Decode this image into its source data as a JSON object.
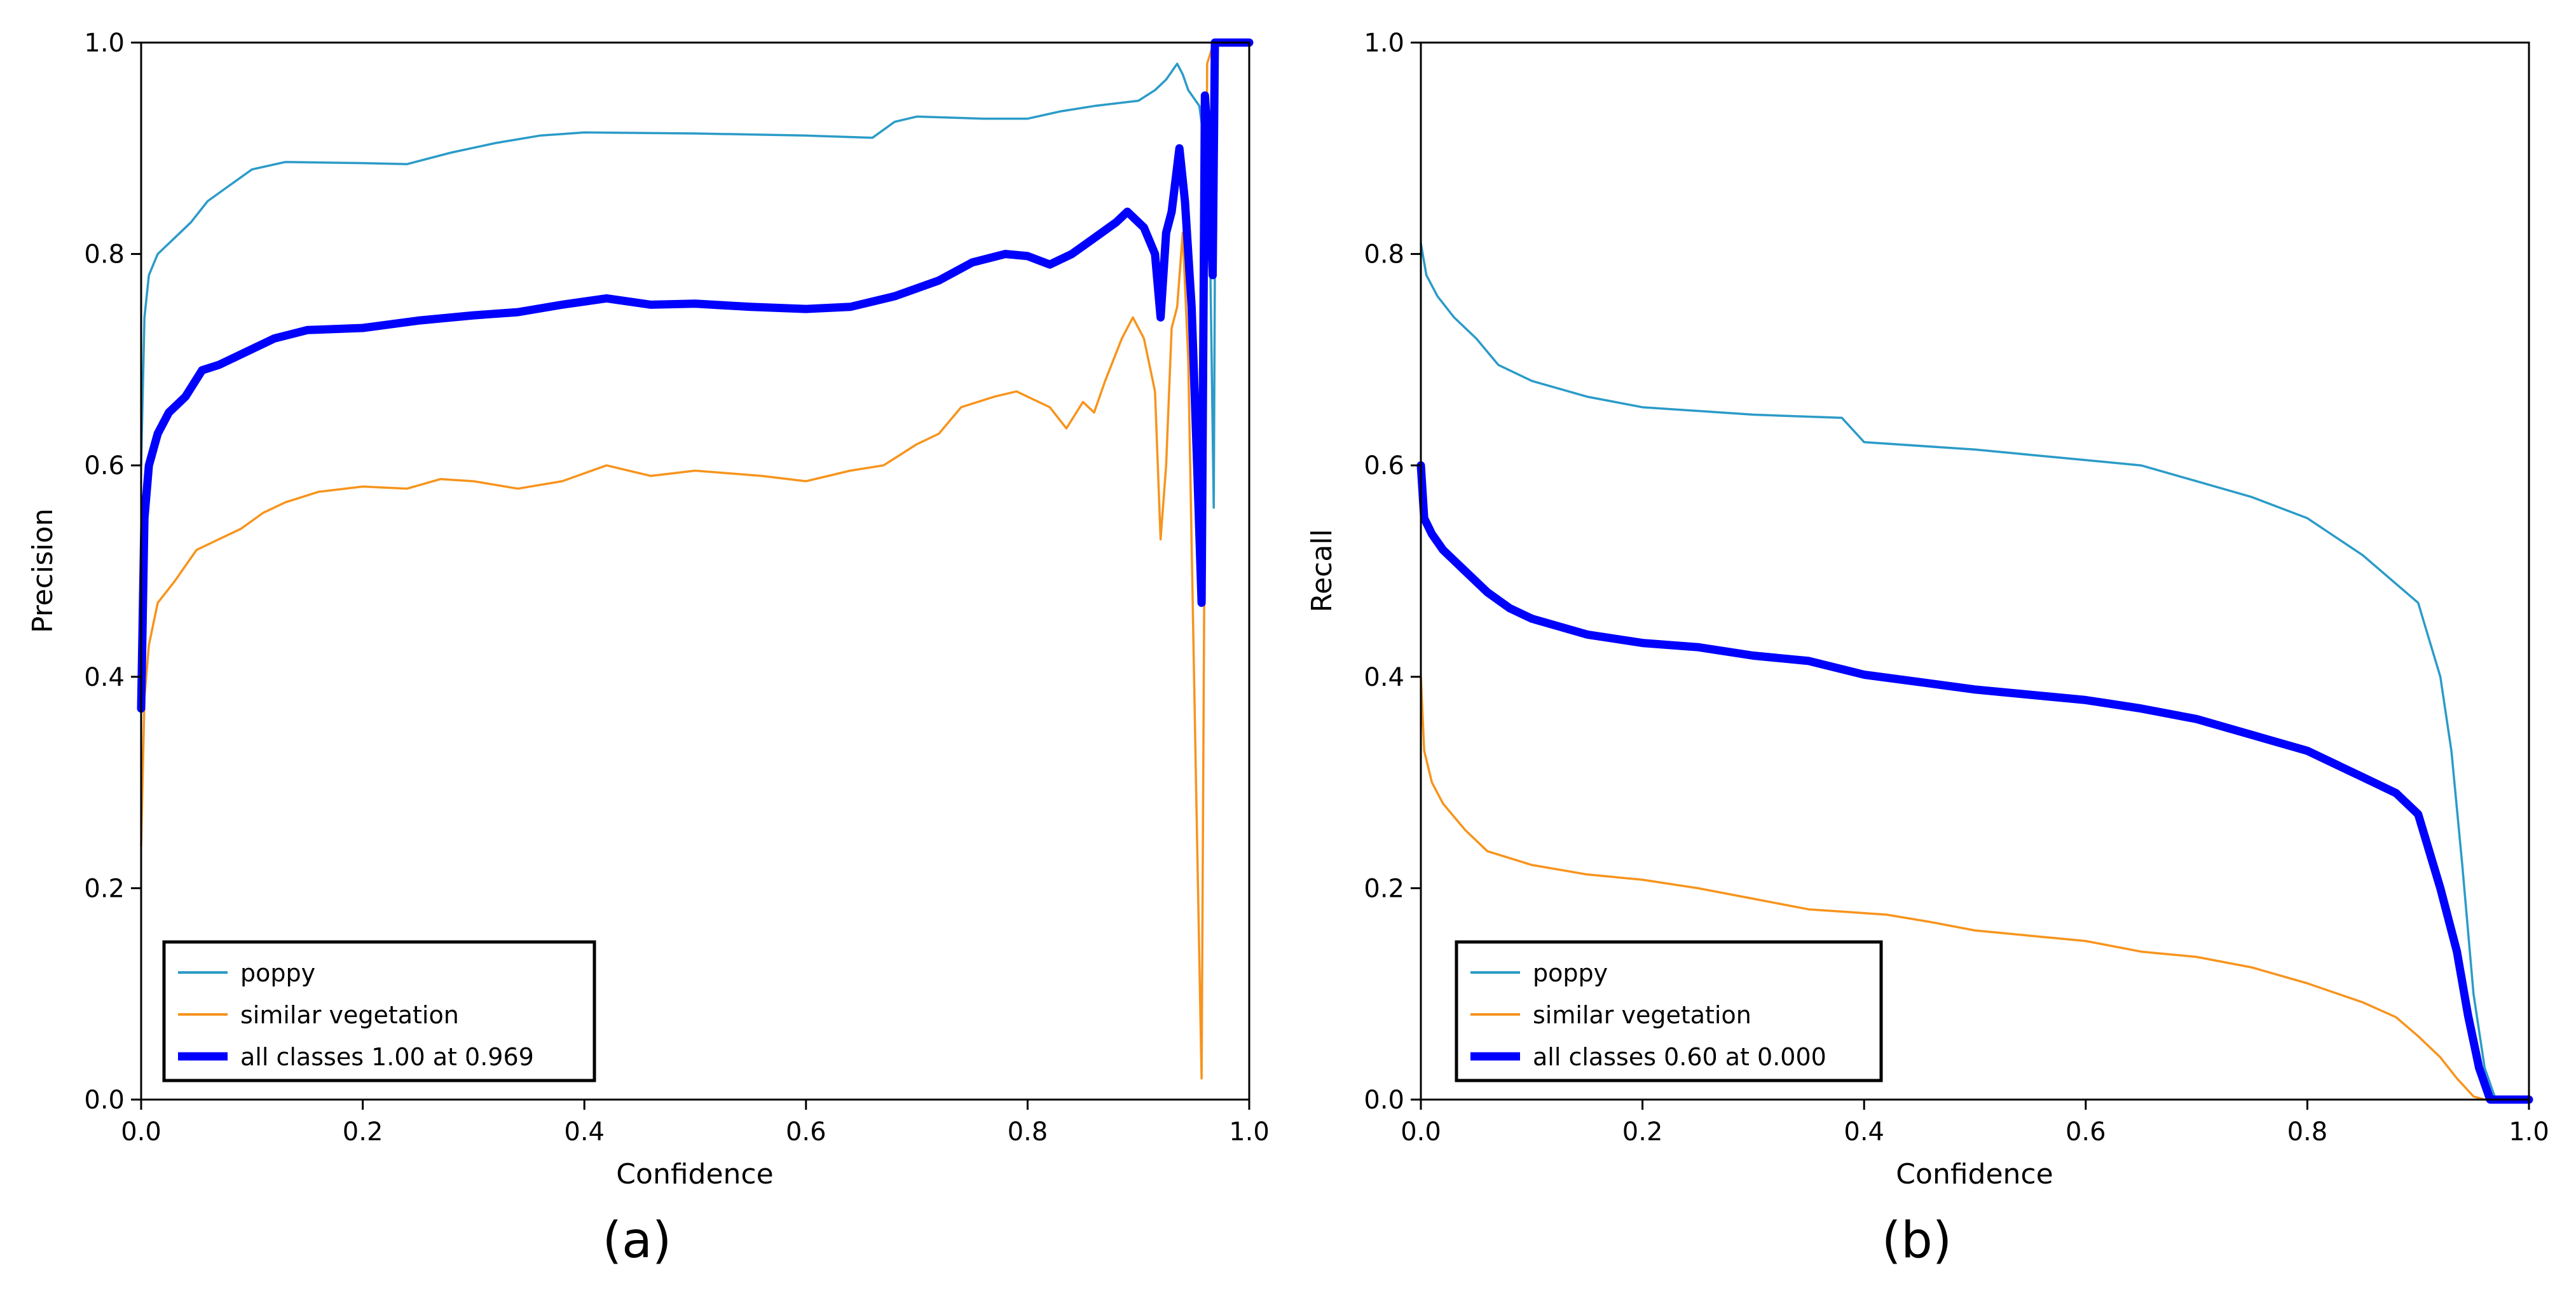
{
  "colors": {
    "poppy": "#2b9bc8",
    "similar_vegetation": "#f7941d",
    "all_classes": "#0000ff"
  },
  "chart_data": [
    {
      "type": "line",
      "panel_label": "(a)",
      "title": "",
      "xlabel": "Confidence",
      "ylabel": "Precision",
      "xlim": [
        0,
        1
      ],
      "ylim": [
        0,
        1
      ],
      "xticks": [
        "0.0",
        "0.2",
        "0.4",
        "0.6",
        "0.8",
        "1.0"
      ],
      "yticks": [
        "0.0",
        "0.2",
        "0.4",
        "0.6",
        "0.8",
        "1.0"
      ],
      "grid": false,
      "legend_position": "bottom-left",
      "series": [
        {
          "name": "poppy",
          "color": "#2b9bc8",
          "width": "thin",
          "points": [
            [
              0.0,
              0.6
            ],
            [
              0.003,
              0.74
            ],
            [
              0.007,
              0.78
            ],
            [
              0.015,
              0.8
            ],
            [
              0.03,
              0.815
            ],
            [
              0.045,
              0.83
            ],
            [
              0.06,
              0.85
            ],
            [
              0.08,
              0.865
            ],
            [
              0.1,
              0.88
            ],
            [
              0.13,
              0.887
            ],
            [
              0.2,
              0.886
            ],
            [
              0.24,
              0.885
            ],
            [
              0.28,
              0.896
            ],
            [
              0.32,
              0.905
            ],
            [
              0.36,
              0.912
            ],
            [
              0.4,
              0.915
            ],
            [
              0.5,
              0.914
            ],
            [
              0.6,
              0.912
            ],
            [
              0.66,
              0.91
            ],
            [
              0.68,
              0.925
            ],
            [
              0.7,
              0.93
            ],
            [
              0.76,
              0.928
            ],
            [
              0.8,
              0.928
            ],
            [
              0.83,
              0.935
            ],
            [
              0.86,
              0.94
            ],
            [
              0.9,
              0.945
            ],
            [
              0.915,
              0.955
            ],
            [
              0.925,
              0.965
            ],
            [
              0.935,
              0.98
            ],
            [
              0.94,
              0.97
            ],
            [
              0.945,
              0.955
            ],
            [
              0.955,
              0.94
            ],
            [
              0.96,
              0.9
            ],
            [
              0.965,
              0.78
            ],
            [
              0.968,
              0.56
            ],
            [
              0.97,
              1.0
            ],
            [
              1.0,
              1.0
            ]
          ]
        },
        {
          "name": "similar vegetation",
          "color": "#f7941d",
          "width": "thin",
          "points": [
            [
              0.0,
              0.24
            ],
            [
              0.003,
              0.38
            ],
            [
              0.007,
              0.43
            ],
            [
              0.015,
              0.47
            ],
            [
              0.03,
              0.49
            ],
            [
              0.05,
              0.52
            ],
            [
              0.07,
              0.53
            ],
            [
              0.09,
              0.54
            ],
            [
              0.11,
              0.555
            ],
            [
              0.13,
              0.565
            ],
            [
              0.16,
              0.575
            ],
            [
              0.2,
              0.58
            ],
            [
              0.24,
              0.578
            ],
            [
              0.27,
              0.587
            ],
            [
              0.3,
              0.585
            ],
            [
              0.34,
              0.578
            ],
            [
              0.38,
              0.585
            ],
            [
              0.42,
              0.6
            ],
            [
              0.46,
              0.59
            ],
            [
              0.5,
              0.595
            ],
            [
              0.56,
              0.59
            ],
            [
              0.6,
              0.585
            ],
            [
              0.64,
              0.595
            ],
            [
              0.67,
              0.6
            ],
            [
              0.7,
              0.62
            ],
            [
              0.72,
              0.63
            ],
            [
              0.74,
              0.655
            ],
            [
              0.77,
              0.665
            ],
            [
              0.79,
              0.67
            ],
            [
              0.82,
              0.655
            ],
            [
              0.835,
              0.635
            ],
            [
              0.85,
              0.66
            ],
            [
              0.86,
              0.65
            ],
            [
              0.87,
              0.68
            ],
            [
              0.885,
              0.72
            ],
            [
              0.895,
              0.74
            ],
            [
              0.905,
              0.72
            ],
            [
              0.915,
              0.67
            ],
            [
              0.92,
              0.53
            ],
            [
              0.925,
              0.6
            ],
            [
              0.93,
              0.73
            ],
            [
              0.935,
              0.75
            ],
            [
              0.94,
              0.82
            ],
            [
              0.945,
              0.7
            ],
            [
              0.952,
              0.3
            ],
            [
              0.957,
              0.02
            ],
            [
              0.962,
              0.98
            ],
            [
              0.968,
              1.0
            ],
            [
              1.0,
              1.0
            ]
          ]
        },
        {
          "name": "all classes 1.00 at 0.969",
          "color": "#0000ff",
          "width": "thick",
          "points": [
            [
              0.0,
              0.37
            ],
            [
              0.003,
              0.55
            ],
            [
              0.007,
              0.6
            ],
            [
              0.015,
              0.63
            ],
            [
              0.025,
              0.65
            ],
            [
              0.04,
              0.665
            ],
            [
              0.055,
              0.69
            ],
            [
              0.07,
              0.695
            ],
            [
              0.09,
              0.705
            ],
            [
              0.12,
              0.72
            ],
            [
              0.15,
              0.728
            ],
            [
              0.2,
              0.73
            ],
            [
              0.25,
              0.737
            ],
            [
              0.3,
              0.742
            ],
            [
              0.34,
              0.745
            ],
            [
              0.38,
              0.752
            ],
            [
              0.42,
              0.758
            ],
            [
              0.46,
              0.752
            ],
            [
              0.5,
              0.753
            ],
            [
              0.55,
              0.75
            ],
            [
              0.6,
              0.748
            ],
            [
              0.64,
              0.75
            ],
            [
              0.68,
              0.76
            ],
            [
              0.72,
              0.775
            ],
            [
              0.75,
              0.792
            ],
            [
              0.78,
              0.8
            ],
            [
              0.8,
              0.798
            ],
            [
              0.82,
              0.79
            ],
            [
              0.84,
              0.8
            ],
            [
              0.86,
              0.815
            ],
            [
              0.88,
              0.83
            ],
            [
              0.89,
              0.84
            ],
            [
              0.905,
              0.825
            ],
            [
              0.915,
              0.8
            ],
            [
              0.92,
              0.74
            ],
            [
              0.925,
              0.82
            ],
            [
              0.93,
              0.84
            ],
            [
              0.937,
              0.9
            ],
            [
              0.942,
              0.85
            ],
            [
              0.948,
              0.75
            ],
            [
              0.953,
              0.6
            ],
            [
              0.957,
              0.47
            ],
            [
              0.96,
              0.95
            ],
            [
              0.963,
              0.9
            ],
            [
              0.967,
              0.78
            ],
            [
              0.969,
              1.0
            ],
            [
              1.0,
              1.0
            ]
          ]
        }
      ]
    },
    {
      "type": "line",
      "panel_label": "(b)",
      "title": "",
      "xlabel": "Confidence",
      "ylabel": "Recall",
      "xlim": [
        0,
        1
      ],
      "ylim": [
        0,
        1
      ],
      "xticks": [
        "0.0",
        "0.2",
        "0.4",
        "0.6",
        "0.8",
        "1.0"
      ],
      "yticks": [
        "0.0",
        "0.2",
        "0.4",
        "0.6",
        "0.8",
        "1.0"
      ],
      "grid": false,
      "legend_position": "bottom-left",
      "series": [
        {
          "name": "poppy",
          "color": "#2b9bc8",
          "width": "thin",
          "points": [
            [
              0.0,
              0.81
            ],
            [
              0.005,
              0.78
            ],
            [
              0.015,
              0.76
            ],
            [
              0.03,
              0.74
            ],
            [
              0.05,
              0.72
            ],
            [
              0.07,
              0.695
            ],
            [
              0.1,
              0.68
            ],
            [
              0.15,
              0.665
            ],
            [
              0.2,
              0.655
            ],
            [
              0.3,
              0.648
            ],
            [
              0.38,
              0.645
            ],
            [
              0.4,
              0.622
            ],
            [
              0.5,
              0.615
            ],
            [
              0.55,
              0.61
            ],
            [
              0.6,
              0.605
            ],
            [
              0.65,
              0.6
            ],
            [
              0.7,
              0.585
            ],
            [
              0.75,
              0.57
            ],
            [
              0.8,
              0.55
            ],
            [
              0.85,
              0.515
            ],
            [
              0.9,
              0.47
            ],
            [
              0.92,
              0.4
            ],
            [
              0.93,
              0.33
            ],
            [
              0.94,
              0.22
            ],
            [
              0.95,
              0.1
            ],
            [
              0.96,
              0.03
            ],
            [
              0.97,
              0.0
            ],
            [
              1.0,
              0.0
            ]
          ]
        },
        {
          "name": "similar vegetation",
          "color": "#f7941d",
          "width": "thin",
          "points": [
            [
              0.0,
              0.4
            ],
            [
              0.003,
              0.33
            ],
            [
              0.01,
              0.3
            ],
            [
              0.02,
              0.28
            ],
            [
              0.04,
              0.255
            ],
            [
              0.06,
              0.235
            ],
            [
              0.1,
              0.222
            ],
            [
              0.15,
              0.213
            ],
            [
              0.2,
              0.208
            ],
            [
              0.25,
              0.2
            ],
            [
              0.3,
              0.19
            ],
            [
              0.35,
              0.18
            ],
            [
              0.42,
              0.175
            ],
            [
              0.46,
              0.168
            ],
            [
              0.5,
              0.16
            ],
            [
              0.55,
              0.155
            ],
            [
              0.6,
              0.15
            ],
            [
              0.65,
              0.14
            ],
            [
              0.7,
              0.135
            ],
            [
              0.75,
              0.125
            ],
            [
              0.8,
              0.11
            ],
            [
              0.85,
              0.092
            ],
            [
              0.88,
              0.078
            ],
            [
              0.9,
              0.06
            ],
            [
              0.92,
              0.04
            ],
            [
              0.935,
              0.02
            ],
            [
              0.95,
              0.003
            ],
            [
              0.96,
              0.0
            ],
            [
              1.0,
              0.0
            ]
          ]
        },
        {
          "name": "all classes 0.60 at 0.000",
          "color": "#0000ff",
          "width": "thick",
          "points": [
            [
              0.0,
              0.6
            ],
            [
              0.003,
              0.55
            ],
            [
              0.01,
              0.535
            ],
            [
              0.02,
              0.52
            ],
            [
              0.04,
              0.5
            ],
            [
              0.06,
              0.48
            ],
            [
              0.08,
              0.465
            ],
            [
              0.1,
              0.455
            ],
            [
              0.15,
              0.44
            ],
            [
              0.2,
              0.432
            ],
            [
              0.25,
              0.428
            ],
            [
              0.3,
              0.42
            ],
            [
              0.35,
              0.415
            ],
            [
              0.4,
              0.402
            ],
            [
              0.45,
              0.395
            ],
            [
              0.5,
              0.388
            ],
            [
              0.55,
              0.383
            ],
            [
              0.6,
              0.378
            ],
            [
              0.65,
              0.37
            ],
            [
              0.7,
              0.36
            ],
            [
              0.75,
              0.345
            ],
            [
              0.8,
              0.33
            ],
            [
              0.85,
              0.305
            ],
            [
              0.88,
              0.29
            ],
            [
              0.9,
              0.27
            ],
            [
              0.92,
              0.2
            ],
            [
              0.935,
              0.14
            ],
            [
              0.945,
              0.08
            ],
            [
              0.955,
              0.03
            ],
            [
              0.965,
              0.0
            ],
            [
              1.0,
              0.0
            ]
          ]
        }
      ]
    }
  ]
}
